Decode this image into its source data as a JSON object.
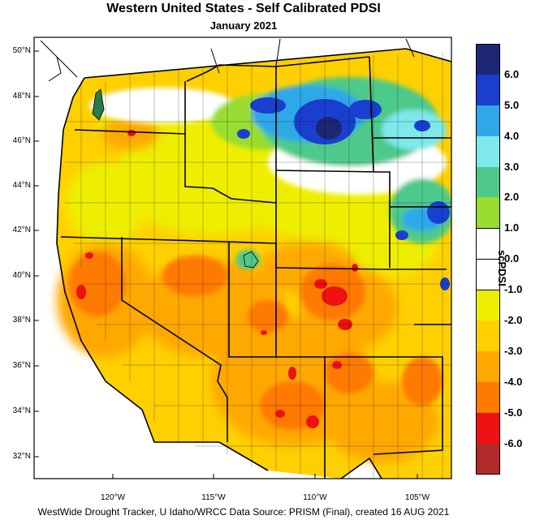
{
  "title": "Western United States - Self Calibrated PDSI",
  "subtitle": "January 2021",
  "footer": "WestWide Drought Tracker, U Idaho/WRCC Data Source: PRISM (Final), created 16 AUG 2021",
  "latitude_labels": [
    "50°N",
    "48°N",
    "46°N",
    "44°N",
    "42°N",
    "40°N",
    "38°N",
    "36°N",
    "34°N",
    "32°N"
  ],
  "longitude_labels": [
    "120°W",
    "115°W",
    "110°W",
    "105°W"
  ],
  "legend": {
    "title": "scPDSI",
    "labels": [
      "6.0",
      "5.0",
      "4.0",
      "3.0",
      "2.0",
      "1.0",
      "0.0",
      "-1.0",
      "-2.0",
      "-3.0",
      "-4.0",
      "-5.0",
      "-6.0"
    ],
    "colors": [
      "#1c2672",
      "#1a3fcf",
      "#2ea8e8",
      "#7ee8ea",
      "#4ec98b",
      "#99dd33",
      "#ffffff",
      "#ffffff",
      "#eeee00",
      "#ffd000",
      "#ffa800",
      "#ff7a00",
      "#ee1111",
      "#b22a2a"
    ]
  }
}
